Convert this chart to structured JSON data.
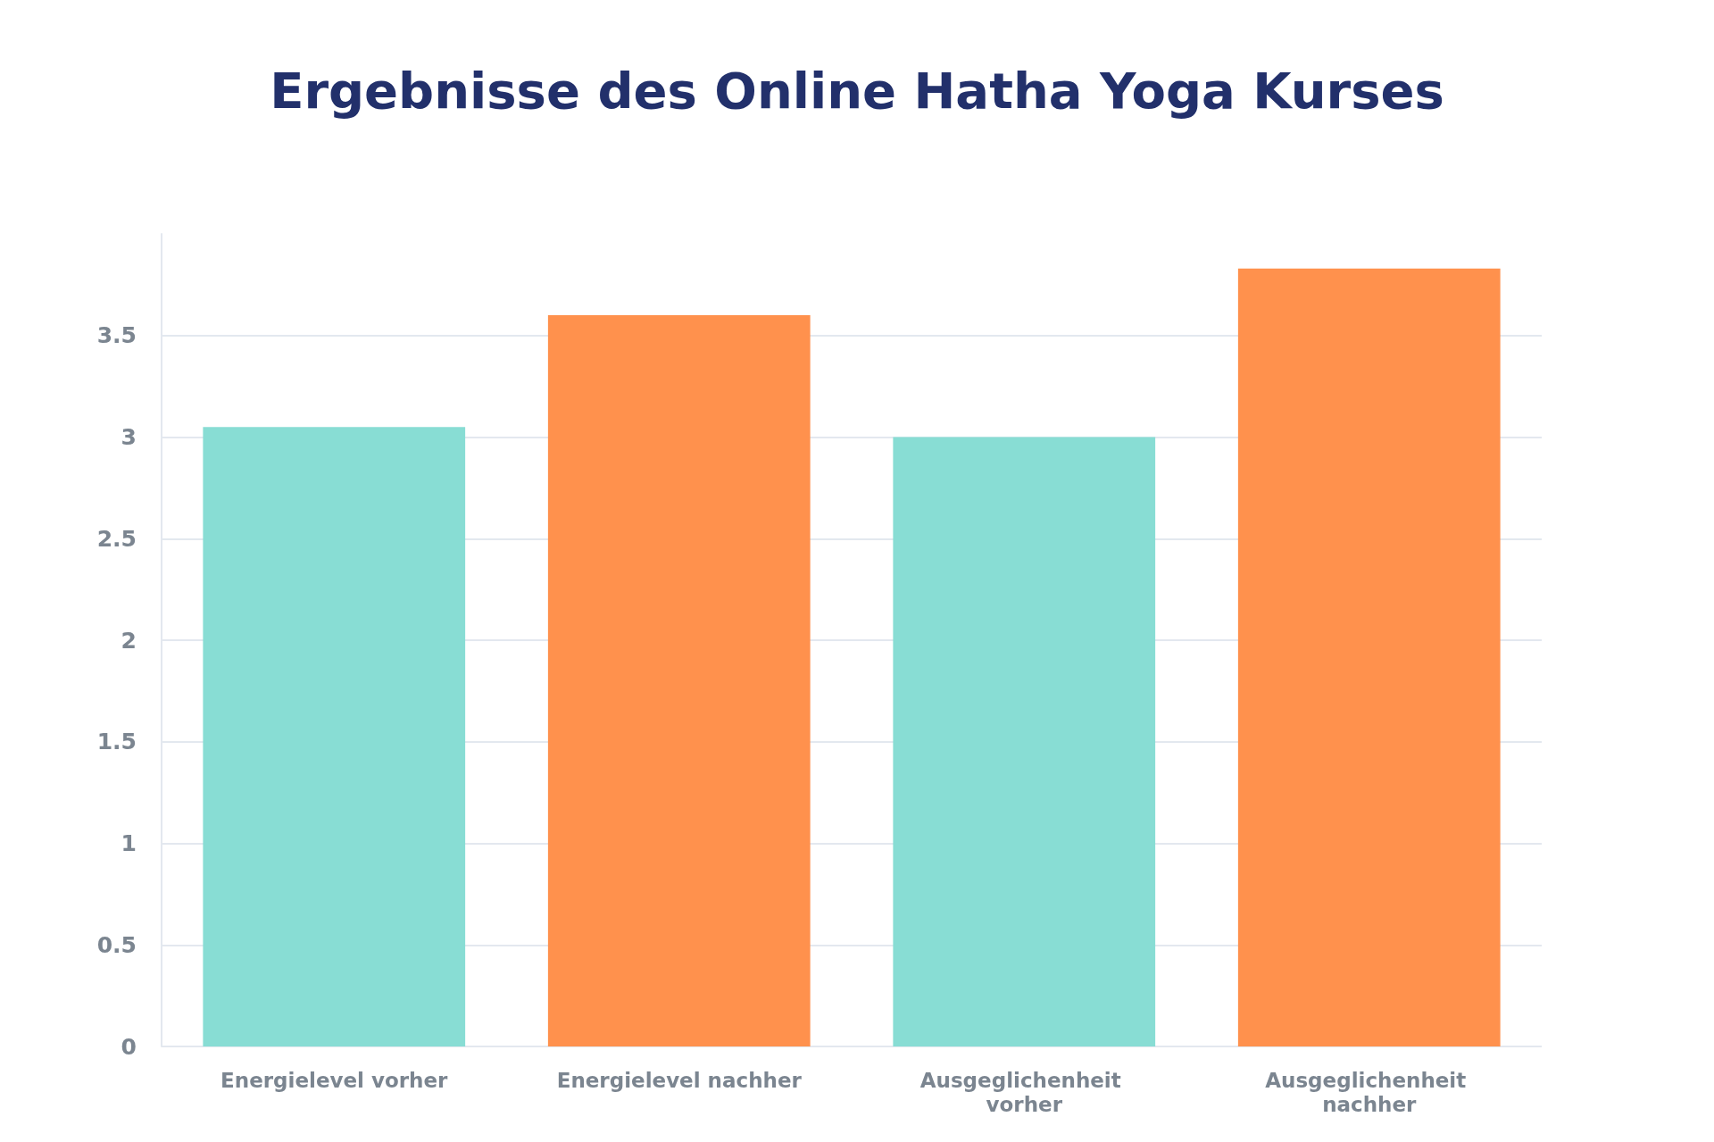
{
  "chart_data": {
    "type": "bar",
    "title": "Ergebnisse des Online Hatha Yoga Kurses",
    "categories": [
      "Energielevel vorher",
      "Energielevel nachher",
      "Ausgeglichenheit vorher",
      "Ausgeglichenheit nachher"
    ],
    "values": [
      3.05,
      3.6,
      3.0,
      3.83
    ],
    "colors": [
      "#88ddd4",
      "#ff914d",
      "#88ddd4",
      "#ff914d"
    ],
    "ylim": [
      0,
      4
    ],
    "yticks": [
      0,
      0.5,
      1,
      1.5,
      2,
      2.5,
      3,
      3.5
    ],
    "grid": "y"
  }
}
